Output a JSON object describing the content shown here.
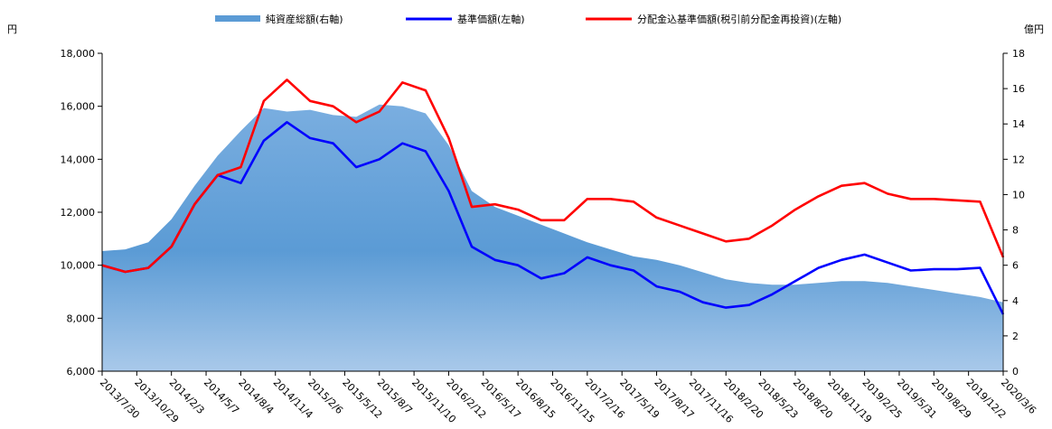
{
  "chart_data": {
    "type": "line",
    "legend_position": "top",
    "grid": false,
    "left_axis_unit": "円",
    "right_axis_unit": "億円",
    "ylim_left": [
      6000,
      18000
    ],
    "yticks_left": [
      "6,000",
      "8,000",
      "10,000",
      "12,000",
      "14,000",
      "16,000",
      "18,000"
    ],
    "ylim_right": [
      0,
      18
    ],
    "yticks_right": [
      "0",
      "2",
      "4",
      "6",
      "8",
      "10",
      "12",
      "14",
      "16",
      "18"
    ],
    "x_tick_labels": [
      "2013/7/30",
      "2013/10/29",
      "2014/2/3",
      "2014/5/7",
      "2014/8/4",
      "2014/11/4",
      "2015/2/6",
      "2015/5/12",
      "2015/8/7",
      "2015/11/10",
      "2016/2/12",
      "2016/5/17",
      "2016/8/15",
      "2016/11/15",
      "2017/2/16",
      "2017/5/19",
      "2017/8/17",
      "2017/11/16",
      "2018/2/20",
      "2018/5/23",
      "2018/8/20",
      "2018/11/19",
      "2019/2/25",
      "2019/5/31",
      "2019/8/29",
      "2019/12/2",
      "2020/3/6"
    ],
    "series": [
      {
        "name": "純資産総額(右軸)",
        "kind": "area",
        "axis": "right",
        "color": "#5b9bd5",
        "values": [
          6.8,
          6.9,
          7.3,
          8.6,
          10.5,
          12.2,
          13.6,
          14.9,
          14.7,
          14.8,
          14.5,
          14.4,
          15.1,
          15.0,
          14.6,
          12.8,
          10.2,
          9.3,
          8.8,
          8.3,
          7.8,
          7.3,
          6.9,
          6.5,
          6.3,
          6.0,
          5.6,
          5.2,
          5.0,
          4.9,
          4.9,
          5.0,
          5.1,
          5.1,
          5.0,
          4.8,
          4.6,
          4.4,
          4.2,
          3.9
        ]
      },
      {
        "name": "基準価額(左軸)",
        "kind": "line",
        "axis": "left",
        "color": "#0000ff",
        "values": [
          10000,
          9750,
          9900,
          10700,
          12300,
          13400,
          13100,
          14700,
          15400,
          14800,
          14600,
          13700,
          14000,
          14600,
          14300,
          12800,
          10700,
          10200,
          10000,
          9500,
          9700,
          10300,
          10000,
          9800,
          9200,
          9000,
          8600,
          8400,
          8500,
          8900,
          9400,
          9900,
          10200,
          10400,
          10100,
          9800,
          9850,
          9850,
          9900,
          8150
        ]
      },
      {
        "name": "分配金込基準価額(税引前分配金再投資)(左軸)",
        "kind": "line",
        "axis": "left",
        "color": "#ff0000",
        "values": [
          10000,
          9750,
          9900,
          10700,
          12300,
          13400,
          13700,
          16200,
          17000,
          16200,
          16000,
          15400,
          15800,
          16900,
          16600,
          14800,
          12200,
          12300,
          12100,
          11700,
          11700,
          12500,
          12500,
          12400,
          11800,
          11500,
          11200,
          10900,
          11000,
          11500,
          12100,
          12600,
          13000,
          13100,
          12700,
          12500,
          12500,
          12450,
          12400,
          10300
        ]
      }
    ]
  }
}
